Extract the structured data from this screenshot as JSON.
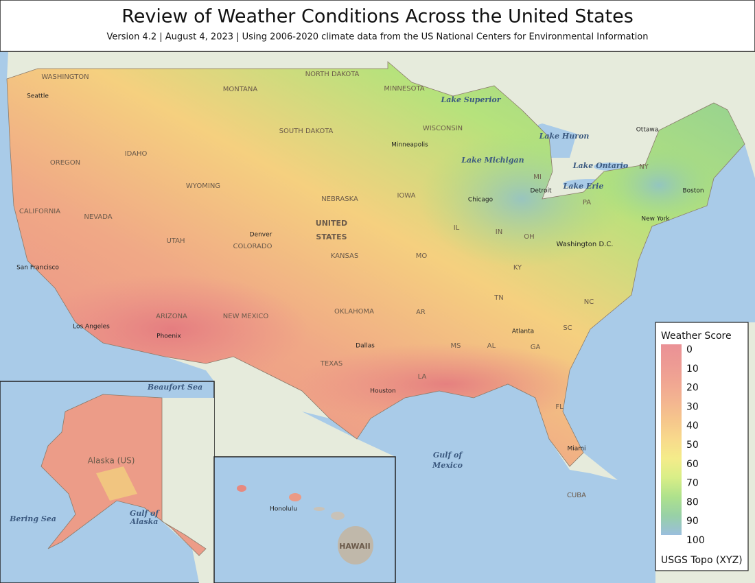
{
  "header": {
    "title": "Review of Weather Conditions Across the United States",
    "subtitle": "Version 4.2 | August 4, 2023 | Using 2006-2020 climate data from the US National Centers for Environmental Information"
  },
  "legend": {
    "title": "Weather Score",
    "ticks": [
      0,
      10,
      20,
      30,
      40,
      50,
      60,
      70,
      80,
      90,
      100
    ],
    "colors": [
      "#e8858a",
      "#eb8f88",
      "#ef9c86",
      "#f2ad84",
      "#f5c07f",
      "#f7d67f",
      "#f3ea7d",
      "#d4ec7a",
      "#a5de7f",
      "#8ccb9d",
      "#8fb7d9"
    ],
    "attribution": "USGS Topo (XYZ)"
  },
  "map": {
    "labels": [
      "WASHINGTON",
      "Seattle",
      "OREGON",
      "CALIFORNIA",
      "NEVADA",
      "IDAHO",
      "MONTANA",
      "WYOMING",
      "UTAH",
      "COLORADO",
      "ARIZONA",
      "NEW MEXICO",
      "NORTH DAKOTA",
      "SOUTH DAKOTA",
      "NEBRASKA",
      "KANSAS",
      "OKLAHOMA",
      "TEXAS",
      "MINNESOTA",
      "WISCONSIN",
      "IOWA",
      "MO",
      "AR",
      "LA",
      "MS",
      "AL",
      "GA",
      "FL",
      "SC",
      "NC",
      "TN",
      "KY",
      "IL",
      "IN",
      "OH",
      "MI",
      "PA",
      "NY",
      "Boston",
      "Los Angeles",
      "San Francisco",
      "Phoenix",
      "Denver",
      "Dallas",
      "Houston",
      "Minneapolis",
      "Chicago",
      "Detroit",
      "Atlanta",
      "Miami",
      "New York",
      "Washington D.C.",
      "Ottawa",
      "Lake Superior",
      "Lake Michigan",
      "Lake Huron",
      "Lake Ontario",
      "Lake Erie",
      "UNITED",
      "STATES",
      "Gulf of",
      "Mexico",
      "Beaufort Sea",
      "Bering Sea",
      "Gulf of",
      "Alaska",
      "Alaska (US)",
      "Honolulu",
      "HAWAII",
      "CUBA"
    ]
  }
}
